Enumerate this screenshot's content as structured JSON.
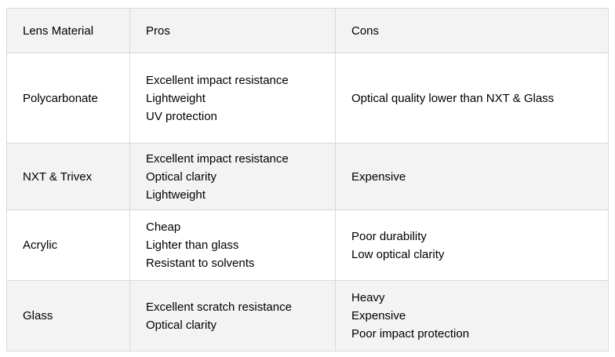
{
  "table": {
    "columns": [
      "Lens Material",
      "Pros",
      "Cons"
    ],
    "rows": [
      {
        "material": "Polycarbonate",
        "pros": [
          "Excellent impact resistance",
          "Lightweight",
          "UV protection"
        ],
        "cons": [
          "Optical quality lower than NXT & Glass"
        ]
      },
      {
        "material": "NXT & Trivex",
        "pros": [
          "Excellent impact resistance",
          "Optical clarity",
          "Lightweight"
        ],
        "cons": [
          "Expensive"
        ]
      },
      {
        "material": "Acrylic",
        "pros": [
          "Cheap",
          "Lighter than glass",
          "Resistant to solvents"
        ],
        "cons": [
          "Poor durability",
          "Low optical clarity"
        ]
      },
      {
        "material": "Glass",
        "pros": [
          "Excellent scratch resistance",
          "Optical clarity"
        ],
        "cons": [
          "Heavy",
          "Expensive",
          "Poor impact protection"
        ]
      }
    ],
    "colors": {
      "stripe": "#f3f3f3",
      "border": "#d9d9d9",
      "text": "#000000",
      "background": "#ffffff"
    }
  }
}
